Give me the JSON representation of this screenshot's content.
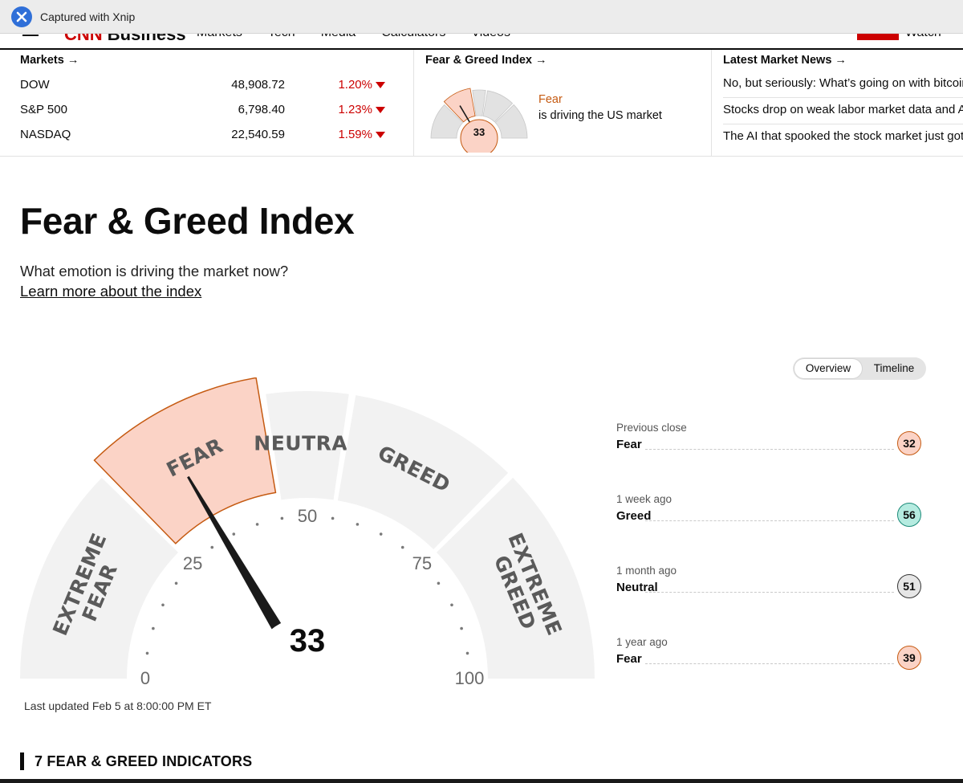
{
  "capture": {
    "title": "Captured with Xnip",
    "icon": "xnip-logo-icon"
  },
  "nav": {
    "brand_cnn": "CNN",
    "brand_business": "Business",
    "links": [
      "Markets",
      "Tech",
      "Media",
      "Calculators",
      "Videos"
    ],
    "watch": "Watch"
  },
  "ticker": {
    "markets_head": "Markets →",
    "rows": [
      {
        "name": "DOW",
        "value": "48,908.72",
        "change": "1.20%"
      },
      {
        "name": "S&P 500",
        "value": "6,798.40",
        "change": "1.23%"
      },
      {
        "name": "NASDAQ",
        "value": "22,540.59",
        "change": "1.59%"
      }
    ],
    "fg_head": "Fear & Greed Index →",
    "fg_value": "33",
    "fg_label": "Fear",
    "fg_desc": "is driving the US market",
    "news_head": "Latest Market News →",
    "news": [
      "No, but seriously: What’s going on with bitcoin?",
      "Stocks drop on weak labor market data and AI fears",
      "The AI that spooked the stock market just got an upgrade"
    ]
  },
  "page": {
    "title": "Fear & Greed Index",
    "subtitle": "What emotion is driving the market now?",
    "learn_more": "Learn more about the index"
  },
  "toggle": {
    "overview": "Overview",
    "timeline": "Timeline"
  },
  "gauge": {
    "value": 33,
    "segments": [
      "EXTREME FEAR",
      "FEAR",
      "NEUTRAL",
      "GREED",
      "EXTREME GREED"
    ],
    "ticks": [
      "0",
      "25",
      "50",
      "75",
      "100"
    ],
    "active_color": "#fbd3c6",
    "active_border": "#c55a11",
    "segment_color": "#f2f2f2"
  },
  "last_updated": "Last updated Feb 5 at 8:00:00 PM ET",
  "history": [
    {
      "when": "Previous close",
      "label": "Fear",
      "value": "32",
      "bg": "#fbd3c6",
      "border": "#c55a11"
    },
    {
      "when": "1 week ago",
      "label": "Greed",
      "value": "56",
      "bg": "#b5ebe0",
      "border": "#1a8a78"
    },
    {
      "when": "1 month ago",
      "label": "Neutral",
      "value": "51",
      "bg": "#e6e6e6",
      "border": "#333333"
    },
    {
      "when": "1 year ago",
      "label": "Fear",
      "value": "39",
      "bg": "#fbd3c6",
      "border": "#c55a11"
    }
  ],
  "indicators_title": "7 FEAR & GREED INDICATORS"
}
